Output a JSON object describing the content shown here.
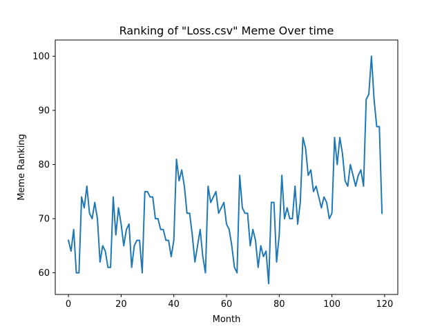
{
  "chart_data": {
    "type": "line",
    "title": "Ranking of \"Loss.csv\" Meme Over time",
    "xlabel": "Month",
    "ylabel": "Meme Ranking",
    "xlim": [
      -5,
      125
    ],
    "ylim": [
      56,
      103
    ],
    "xticks": [
      0,
      20,
      40,
      60,
      80,
      100,
      120
    ],
    "yticks": [
      60,
      70,
      80,
      90,
      100
    ],
    "grid": false,
    "color": "#1f77b4",
    "series": [
      {
        "x": [
          0,
          1,
          2,
          3,
          4,
          5,
          6,
          7,
          8,
          9,
          10,
          11,
          12,
          13,
          14,
          15,
          16,
          17,
          18,
          19,
          20,
          21,
          22,
          23,
          24,
          25,
          26,
          27,
          28,
          29,
          30,
          31,
          32,
          33,
          34,
          35,
          36,
          37,
          38,
          39,
          40,
          41,
          42,
          43,
          44,
          45,
          46,
          47,
          48,
          49,
          50,
          51,
          52,
          53,
          54,
          55,
          56,
          57,
          58,
          59,
          60,
          61,
          62,
          63,
          64,
          65,
          66,
          67,
          68,
          69,
          70,
          71,
          72,
          73,
          74,
          75,
          76,
          77,
          78,
          79,
          80,
          81,
          82,
          83,
          84,
          85,
          86,
          87,
          88,
          89,
          90,
          91,
          92,
          93,
          94,
          95,
          96,
          97,
          98,
          99,
          100,
          101,
          102,
          103,
          104,
          105,
          106,
          107,
          108,
          109,
          110,
          111,
          112,
          113,
          114,
          115,
          116,
          117,
          118,
          119
        ],
        "values": [
          66,
          64,
          68,
          60,
          60,
          74,
          72,
          76,
          71,
          70,
          73,
          70,
          62,
          65,
          64,
          61,
          61,
          74,
          67,
          72,
          69,
          65,
          68,
          69,
          61,
          65,
          66,
          66,
          60,
          75,
          75,
          74,
          74,
          70,
          70,
          68,
          68,
          66,
          66,
          63,
          66,
          81,
          77,
          79,
          76,
          71,
          71,
          67,
          62,
          65,
          68,
          63,
          60,
          76,
          73,
          74,
          75,
          71,
          72,
          73,
          69,
          68,
          65,
          61,
          60,
          78,
          72,
          71,
          71,
          65,
          68,
          66,
          61,
          65,
          63,
          64,
          58,
          73,
          73,
          62,
          67,
          78,
          70,
          72,
          70,
          70,
          76,
          69,
          73,
          85,
          83,
          78,
          79,
          75,
          76,
          74,
          72,
          74,
          73,
          70,
          71,
          85,
          80,
          85,
          82,
          77,
          76,
          80,
          78,
          76,
          78,
          79,
          76,
          92,
          93,
          100,
          92,
          87,
          87,
          71
        ]
      }
    ]
  }
}
